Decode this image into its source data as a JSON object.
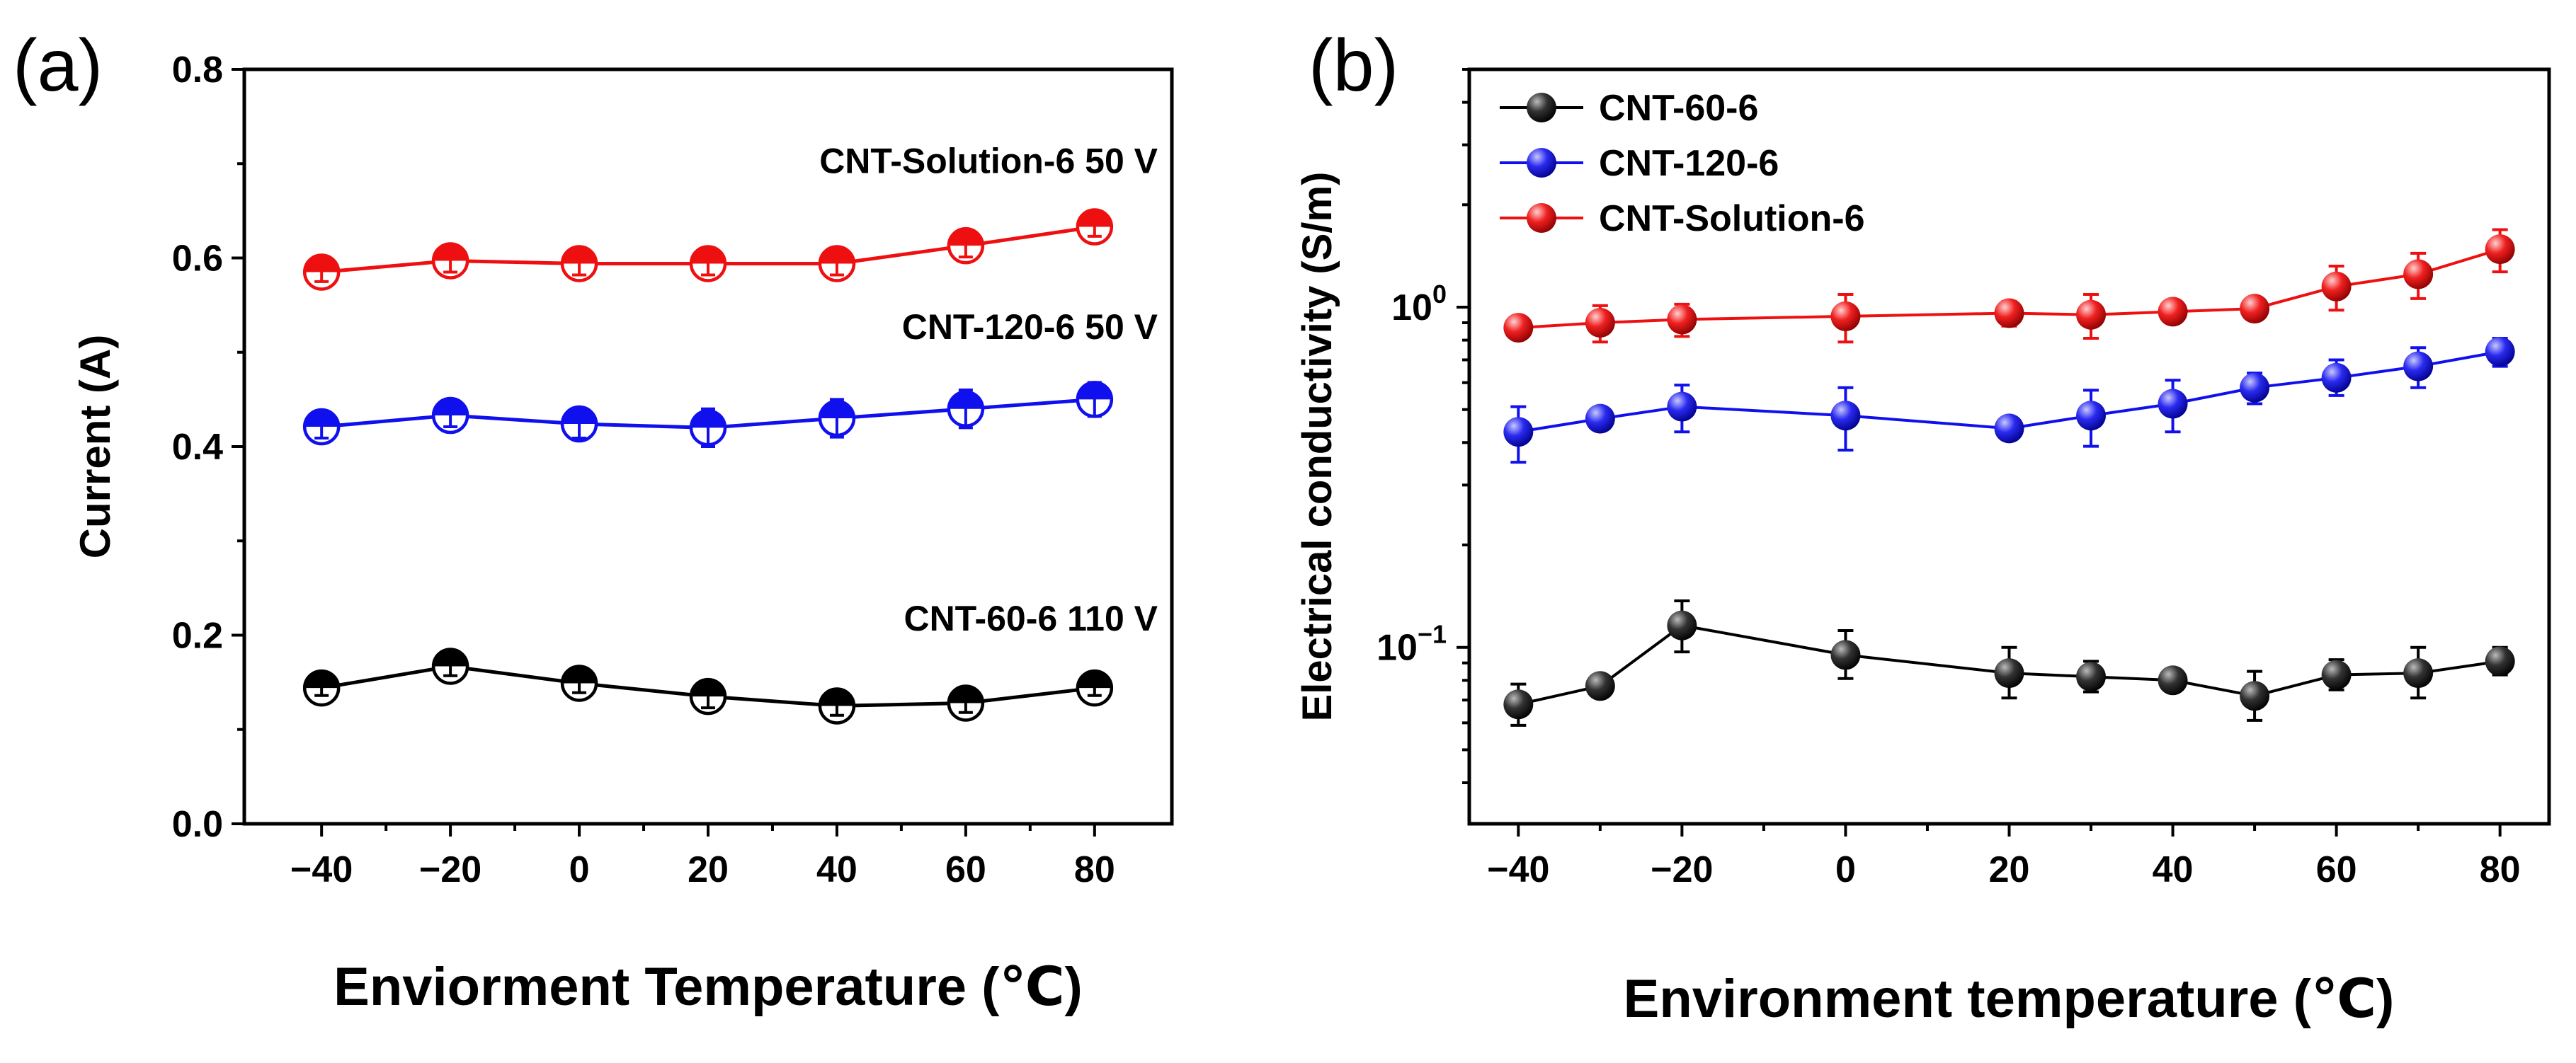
{
  "colors": {
    "black": "#000000",
    "blue": "#1010ee",
    "red": "#ee1010"
  },
  "chart_data": [
    {
      "type": "line",
      "panel_label": "(a)",
      "xlabel": "Enviorment Temperature (℃)",
      "ylabel": "Current (A)",
      "xlim": [
        -52,
        92
      ],
      "ylim": [
        0.0,
        0.8
      ],
      "xticks": [
        -40,
        -20,
        0,
        20,
        40,
        60,
        80
      ],
      "xtick_labels": [
        "−40",
        "−20",
        "0",
        "20",
        "40",
        "60",
        "80"
      ],
      "yticks": [
        0.0,
        0.2,
        0.4,
        0.6,
        0.8
      ],
      "ytick_labels": [
        "0.0",
        "0.2",
        "0.4",
        "0.6",
        "0.8"
      ],
      "x": [
        -40,
        -20,
        0,
        20,
        40,
        60,
        80
      ],
      "series": [
        {
          "name": "CNT-Solution-6 50 V",
          "color": "#ee1010",
          "marker": "half-circle",
          "values": [
            0.585,
            0.597,
            0.594,
            0.594,
            0.594,
            0.613,
            0.633
          ],
          "errors": [
            0.01,
            0.012,
            0.012,
            0.012,
            0.012,
            0.012,
            0.01
          ]
        },
        {
          "name": "CNT-120-6 50 V",
          "color": "#1010ee",
          "marker": "half-circle",
          "values": [
            0.421,
            0.433,
            0.424,
            0.42,
            0.43,
            0.44,
            0.45
          ],
          "errors": [
            0.012,
            0.012,
            0.015,
            0.02,
            0.02,
            0.02,
            0.018
          ]
        },
        {
          "name": "CNT-60-6 110 V",
          "color": "#000000",
          "marker": "half-circle",
          "values": [
            0.144,
            0.167,
            0.149,
            0.135,
            0.125,
            0.128,
            0.144
          ],
          "errors": [
            0.008,
            0.01,
            0.01,
            0.012,
            0.01,
            0.01,
            0.008
          ]
        }
      ]
    },
    {
      "type": "line",
      "panel_label": "(b)",
      "xlabel": "Environment temperature (℃)",
      "ylabel": "Electrical conductivity (S/m)",
      "yscale": "log",
      "xlim": [
        -46,
        86
      ],
      "ylim": [
        0.0303,
        5.0
      ],
      "xticks": [
        -40,
        -20,
        0,
        20,
        40,
        60,
        80
      ],
      "xtick_labels": [
        "−40",
        "−20",
        "0",
        "20",
        "40",
        "60",
        "80"
      ],
      "ytick_major_labels": [
        {
          "value": 0.1,
          "base": "10",
          "exp": "−1"
        },
        {
          "value": 1.0,
          "base": "10",
          "exp": "0"
        }
      ],
      "x": [
        -40,
        -30,
        -20,
        0,
        20,
        30,
        40,
        50,
        60,
        70,
        80
      ],
      "legend_position": "top-left",
      "series": [
        {
          "name": "CNT-60-6",
          "color": "#000000",
          "values": [
            0.068,
            0.077,
            0.116,
            0.095,
            0.084,
            0.082,
            0.08,
            0.072,
            0.083,
            0.084,
            0.091
          ],
          "err_lo": [
            0.059,
            0.072,
            0.097,
            0.081,
            0.071,
            0.074,
            0.075,
            0.061,
            0.075,
            0.071,
            0.083
          ],
          "err_hi": [
            0.078,
            0.083,
            0.137,
            0.112,
            0.1,
            0.091,
            0.085,
            0.085,
            0.092,
            0.1,
            0.1
          ]
        },
        {
          "name": "CNT-120-6",
          "color": "#1010ee",
          "values": [
            0.43,
            0.47,
            0.51,
            0.48,
            0.44,
            0.48,
            0.52,
            0.58,
            0.62,
            0.67,
            0.74
          ],
          "err_lo": [
            0.35,
            0.44,
            0.43,
            0.38,
            0.42,
            0.39,
            0.43,
            0.52,
            0.55,
            0.58,
            0.67
          ],
          "err_hi": [
            0.51,
            0.5,
            0.59,
            0.58,
            0.46,
            0.57,
            0.61,
            0.64,
            0.7,
            0.76,
            0.81
          ]
        },
        {
          "name": "CNT-Solution-6",
          "color": "#ee1010",
          "values": [
            0.87,
            0.9,
            0.92,
            0.94,
            0.96,
            0.95,
            0.97,
            0.99,
            1.15,
            1.25,
            1.48
          ],
          "err_lo": [
            0.82,
            0.79,
            0.82,
            0.79,
            0.88,
            0.81,
            0.9,
            0.94,
            0.98,
            1.06,
            1.27
          ],
          "err_hi": [
            0.92,
            1.01,
            1.02,
            1.09,
            1.04,
            1.09,
            1.04,
            1.04,
            1.32,
            1.44,
            1.69
          ]
        }
      ]
    }
  ]
}
